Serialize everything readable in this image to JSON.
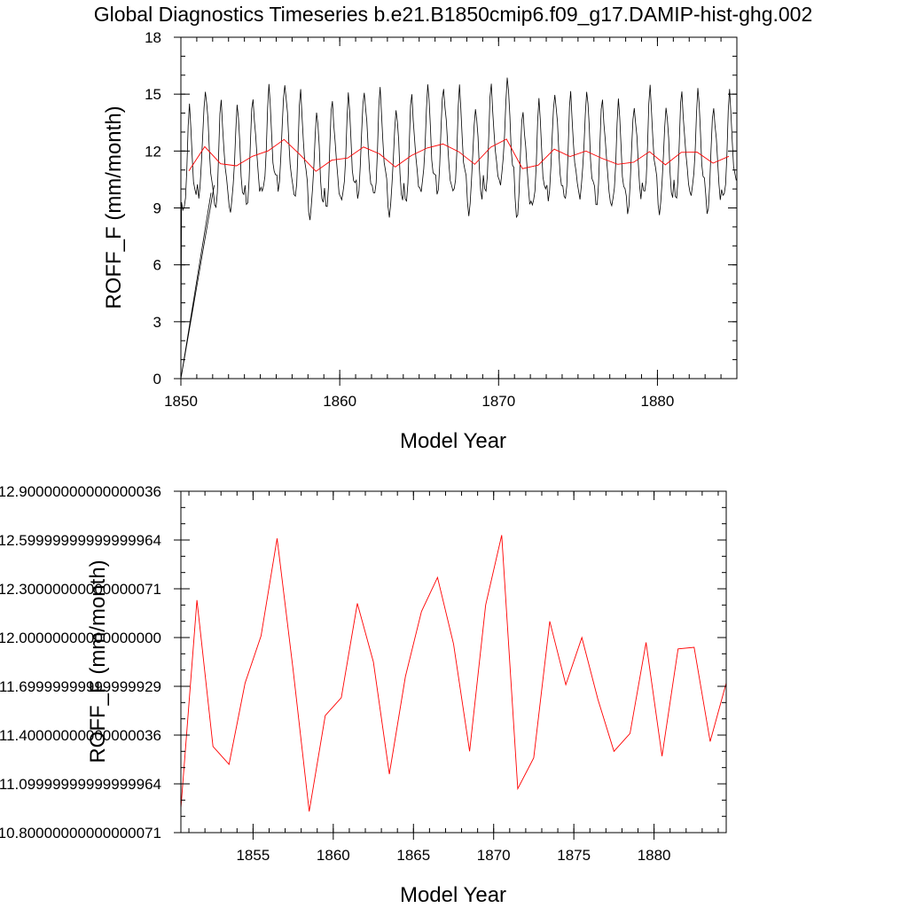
{
  "title": "Global Diagnostics Timeseries b.e21.B1850cmip6.f09_g17.DAMIP-hist-ghg.002",
  "colors": {
    "monthly": "#000000",
    "annual": "#ff0000",
    "axis": "#000000"
  },
  "chart_data": [
    {
      "type": "line",
      "ylabel": "ROFF_F (mm/month)",
      "xlabel": "Model Year",
      "xlim": [
        1850,
        1885
      ],
      "ylim": [
        0,
        18
      ],
      "xticks": [
        1850,
        1860,
        1870,
        1880
      ],
      "yticks": [
        0,
        3,
        6,
        9,
        12,
        15,
        18
      ],
      "series": [
        {
          "style": "monthly",
          "color": "#000000",
          "annual_cycle_offsets": [
            -1.8,
            -2.4,
            -2.1,
            -1.2,
            0.4,
            2.3,
            3.2,
            2.2,
            1.1,
            -0.3,
            -1.1,
            -1.6
          ],
          "first_points": [
            [
              1850.0,
              0.0
            ],
            [
              1850.04,
              9.3
            ]
          ]
        },
        {
          "style": "annual",
          "color": "#ff0000",
          "x": [
            1850.5,
            1851.5,
            1852.5,
            1853.5,
            1854.5,
            1855.5,
            1856.5,
            1857.5,
            1858.5,
            1859.5,
            1860.5,
            1861.5,
            1862.5,
            1863.5,
            1864.5,
            1865.5,
            1866.5,
            1867.5,
            1868.5,
            1869.5,
            1870.5,
            1871.5,
            1872.5,
            1873.5,
            1874.5,
            1875.5,
            1876.5,
            1877.5,
            1878.5,
            1879.5,
            1880.5,
            1881.5,
            1882.5,
            1883.5,
            1884.5
          ],
          "y": [
            10.95,
            12.23,
            11.33,
            11.22,
            11.72,
            12.01,
            12.61,
            11.8,
            10.93,
            11.52,
            11.63,
            12.21,
            11.85,
            11.16,
            11.76,
            12.16,
            12.37,
            11.96,
            11.3,
            12.2,
            12.63,
            11.07,
            11.26,
            12.1,
            11.71,
            12.0,
            11.62,
            11.3,
            11.41,
            11.97,
            11.27,
            11.93,
            11.94,
            11.36,
            11.72
          ]
        }
      ]
    },
    {
      "type": "line",
      "ylabel": "ROFF_F (mm/month)",
      "xlabel": "Model Year",
      "xlim": [
        1850.5,
        1884.5
      ],
      "ylim": [
        10.8,
        12.9
      ],
      "xticks": [
        1855,
        1860,
        1865,
        1870,
        1875,
        1880
      ],
      "yticks": [
        10.8,
        11.1,
        11.4,
        11.7,
        12.0,
        12.3,
        12.6,
        12.9
      ],
      "series": [
        {
          "style": "annual",
          "color": "#ff0000",
          "x": [
            1850.5,
            1851.5,
            1852.5,
            1853.5,
            1854.5,
            1855.5,
            1856.5,
            1857.5,
            1858.5,
            1859.5,
            1860.5,
            1861.5,
            1862.5,
            1863.5,
            1864.5,
            1865.5,
            1866.5,
            1867.5,
            1868.5,
            1869.5,
            1870.5,
            1871.5,
            1872.5,
            1873.5,
            1874.5,
            1875.5,
            1876.5,
            1877.5,
            1878.5,
            1879.5,
            1880.5,
            1881.5,
            1882.5,
            1883.5,
            1884.5
          ],
          "y": [
            10.95,
            12.23,
            11.33,
            11.22,
            11.72,
            12.01,
            12.61,
            11.8,
            10.93,
            11.52,
            11.63,
            12.21,
            11.85,
            11.16,
            11.76,
            12.16,
            12.37,
            11.96,
            11.3,
            12.2,
            12.63,
            11.07,
            11.26,
            12.1,
            11.71,
            12.0,
            11.62,
            11.3,
            11.41,
            11.97,
            11.27,
            11.93,
            11.94,
            11.36,
            11.72
          ]
        }
      ]
    }
  ]
}
